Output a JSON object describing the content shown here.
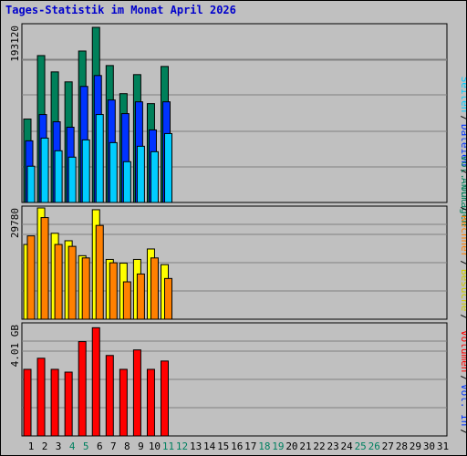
{
  "title": "Tages-Statistik im Monat April 2026",
  "colors": {
    "panel_bg": "#c0c0c0",
    "grid": "#808080",
    "anfragen": "#00805a",
    "dateien": "#0033ff",
    "seiten": "#00ccff",
    "besuche": "#ffff00",
    "rechner": "#ff8000",
    "volumen": "#ff0000",
    "day_weekday": "#000000",
    "day_weekend": "#008060"
  },
  "legend_top": {
    "anfragen": "Anfragen",
    "dateien": "Dateien",
    "seiten": "Seiten",
    "sep": "/"
  },
  "legend_mid": {
    "besuche": "Besuche",
    "rechner": "Rechner",
    "out": "Vol. Out",
    "sep": "/"
  },
  "legend_bottom": {
    "in": "Vol. In",
    "volumen": "Volumen",
    "sep": "/"
  },
  "chart_data": [
    {
      "type": "bar",
      "ylabel": "193120",
      "ylim": [
        0,
        193120
      ],
      "categories": [
        "1",
        "2",
        "3",
        "4",
        "5",
        "6",
        "7",
        "8",
        "9",
        "10",
        "11"
      ],
      "series": [
        {
          "name": "Anfragen",
          "values": [
            92000,
            162000,
            144000,
            133000,
            167000,
            193120,
            151000,
            120000,
            141000,
            109000,
            150000
          ]
        },
        {
          "name": "Dateien",
          "values": [
            68000,
            97000,
            89000,
            83000,
            128000,
            140000,
            113000,
            98000,
            111000,
            80000,
            111000
          ]
        },
        {
          "name": "Seiten",
          "values": [
            40000,
            71000,
            57000,
            50000,
            69000,
            97000,
            66000,
            45000,
            62000,
            56000,
            76000
          ]
        }
      ]
    },
    {
      "type": "bar",
      "ylabel": "29780",
      "ylim": [
        0,
        29780
      ],
      "categories": [
        "1",
        "2",
        "3",
        "4",
        "5",
        "6",
        "7",
        "8",
        "9",
        "10",
        "11"
      ],
      "series": [
        {
          "name": "Besuche",
          "values": [
            20000,
            29780,
            23000,
            21000,
            17000,
            29300,
            16000,
            15000,
            16000,
            18800,
            14600
          ]
        },
        {
          "name": "Rechner",
          "values": [
            22300,
            27200,
            20000,
            19500,
            16400,
            25100,
            15100,
            10000,
            12100,
            16400,
            10900
          ]
        }
      ]
    },
    {
      "type": "bar",
      "ylabel": "4.01 GB",
      "ylim": [
        0,
        4.01
      ],
      "categories": [
        "1",
        "2",
        "3",
        "4",
        "5",
        "6",
        "7",
        "8",
        "9",
        "10",
        "11"
      ],
      "series": [
        {
          "name": "Volumen",
          "values": [
            2.4,
            2.8,
            2.4,
            2.3,
            3.4,
            3.9,
            2.9,
            2.4,
            3.1,
            2.4,
            2.7
          ]
        }
      ]
    }
  ],
  "days": [
    "1",
    "2",
    "3",
    "4",
    "5",
    "6",
    "7",
    "8",
    "9",
    "10",
    "11",
    "12",
    "13",
    "14",
    "15",
    "16",
    "17",
    "18",
    "19",
    "20",
    "21",
    "22",
    "23",
    "24",
    "25",
    "26",
    "27",
    "28",
    "29",
    "30",
    "31"
  ],
  "weekend_days": [
    "4",
    "5",
    "11",
    "12",
    "18",
    "19",
    "25",
    "26"
  ]
}
